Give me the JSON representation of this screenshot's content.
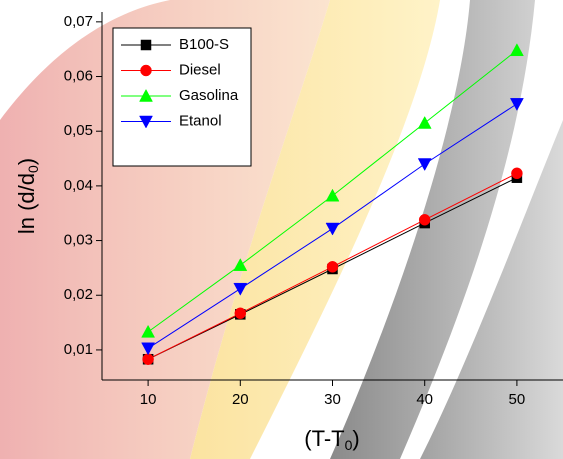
{
  "chart_data": {
    "type": "line",
    "x": [
      10,
      20,
      30,
      40,
      50
    ],
    "series": [
      {
        "name": "B100-S",
        "color": "#000000",
        "marker": "square",
        "values": [
          0.0083,
          0.0165,
          0.0248,
          0.0332,
          0.0415
        ]
      },
      {
        "name": "Diesel",
        "color": "#ff0000",
        "marker": "circle",
        "values": [
          0.0083,
          0.0167,
          0.0252,
          0.0338,
          0.0423
        ]
      },
      {
        "name": "Gasolina",
        "color": "#00ff00",
        "marker": "triangle-up",
        "values": [
          0.0133,
          0.0255,
          0.0382,
          0.0515,
          0.0648
        ]
      },
      {
        "name": "Etanol",
        "color": "#0000ff",
        "marker": "triangle-down",
        "values": [
          0.0103,
          0.0212,
          0.0322,
          0.044,
          0.055
        ]
      }
    ],
    "xlabel": [
      "(T-T",
      "0",
      ")"
    ],
    "ylabel": [
      "ln (d/d",
      "0",
      ")"
    ],
    "xlim": [
      5,
      55
    ],
    "xticks": [
      10,
      20,
      30,
      40,
      50
    ],
    "ylim": [
      0.0045,
      0.0718
    ],
    "yticks": [
      {
        "value": 0.01,
        "label": "0,01"
      },
      {
        "value": 0.02,
        "label": "0,02"
      },
      {
        "value": 0.03,
        "label": "0,03"
      },
      {
        "value": 0.04,
        "label": "0,04"
      },
      {
        "value": 0.05,
        "label": "0,05"
      },
      {
        "value": 0.06,
        "label": "0,06"
      },
      {
        "value": 0.07,
        "label": "0,07"
      }
    ],
    "legend": "upper left"
  }
}
